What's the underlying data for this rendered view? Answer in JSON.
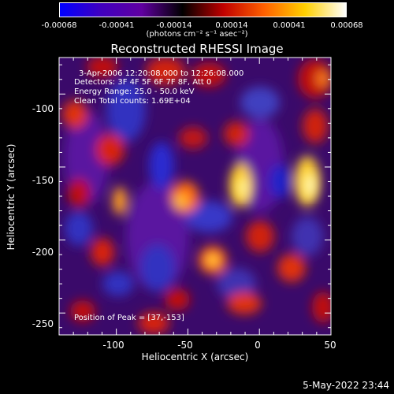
{
  "colorbar": {
    "ticks": [
      "-0.00068",
      "-0.00041",
      "-0.00014",
      "0.00014",
      "0.00041",
      "0.00068"
    ],
    "units": "(photons cm⁻² s⁻¹ asec⁻²)",
    "colors": [
      "#0000ff",
      "#4000c0",
      "#6000a0",
      "#000000",
      "#c00000",
      "#ff6000",
      "#ffd000",
      "#ffffff"
    ]
  },
  "title": "Reconstructed RHESSI Image",
  "annotations": {
    "time": "3-Apr-2006 12:20:08.000 to 12:26:08.000",
    "detectors": "Detectors: 3F 4F 5F 6F 7F 8F, Att 0",
    "energy": "Energy Range: 25.0 - 50.0 keV",
    "method": "Clean     Total counts: 1.69E+04",
    "peak": "Position of Peak = [37,-153]"
  },
  "axes": {
    "xlabel": "Heliocentric X (arcsec)",
    "ylabel": "Heliocentric Y (arcsec)",
    "xticks": [
      "-100",
      "-50",
      "0",
      "50"
    ],
    "yticks": [
      "-100",
      "-150",
      "-200",
      "-250"
    ]
  },
  "footer": {
    "date": "5-May-2022 23:44"
  }
}
